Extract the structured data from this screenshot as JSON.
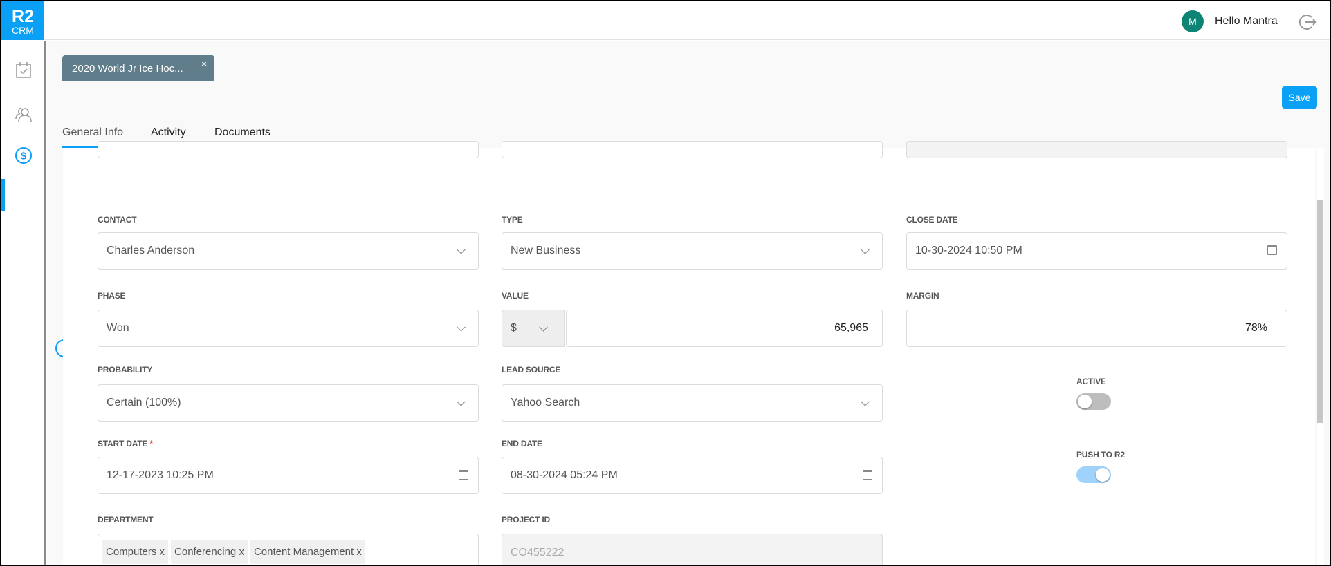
{
  "app": {
    "logo_line1": "R2",
    "logo_line2": "CRM"
  },
  "user": {
    "initial": "M",
    "greeting": "Hello Mantra"
  },
  "icons": {
    "logout": "logout-icon",
    "tasks": "calendar-check-icon",
    "contacts": "users-icon",
    "deals": "dollar-circle-icon"
  },
  "colors": {
    "accent": "#0aa0f5",
    "chip": "#607d8b",
    "avatar": "#0e8474"
  },
  "record_tab": {
    "title": "2020 World Jr Ice Hoc...",
    "close": "×"
  },
  "toolbar": {
    "save_label": "Save"
  },
  "tabs": [
    {
      "label": "General Info",
      "selected": true
    },
    {
      "label": "Activity"
    },
    {
      "label": "Documents"
    }
  ],
  "form": {
    "contact": {
      "label": "CONTACT",
      "value": "Charles Anderson"
    },
    "type": {
      "label": "TYPE",
      "value": "New Business"
    },
    "close_date": {
      "label": "CLOSE DATE",
      "value": "10-30-2024 10:50 PM"
    },
    "phase": {
      "label": "PHASE",
      "value": "Won"
    },
    "value": {
      "label": "VALUE",
      "currency": "$",
      "amount": "65,965"
    },
    "margin": {
      "label": "MARGIN",
      "value": "78%"
    },
    "probability": {
      "label": "PROBABILITY",
      "value": "Certain (100%)"
    },
    "lead_source": {
      "label": "LEAD SOURCE",
      "value": "Yahoo Search"
    },
    "active": {
      "label": "ACTIVE",
      "on": false
    },
    "start_date": {
      "label": "START DATE",
      "required_mark": "*",
      "value": "12-17-2023 10:25 PM"
    },
    "end_date": {
      "label": "END DATE",
      "value": "08-30-2024 05:24 PM"
    },
    "push_to_r2": {
      "label": "PUSH TO R2",
      "on": true
    },
    "department": {
      "label": "DEPARTMENT",
      "tags": [
        "Computers",
        "Conferencing",
        "Content Management"
      ],
      "tag_remove": "x"
    },
    "project_id": {
      "label": "PROJECT ID",
      "value": "CO455222"
    }
  }
}
